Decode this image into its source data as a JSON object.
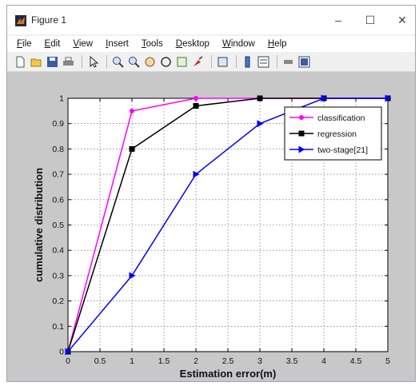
{
  "window": {
    "title": "Figure 1"
  },
  "menu": {
    "items": [
      {
        "acc": "F",
        "rest": "ile"
      },
      {
        "acc": "E",
        "rest": "dit"
      },
      {
        "acc": "V",
        "rest": "iew"
      },
      {
        "acc": "I",
        "rest": "nsert"
      },
      {
        "acc": "T",
        "rest": "ools"
      },
      {
        "acc": "D",
        "rest": "esktop"
      },
      {
        "acc": "W",
        "rest": "indow"
      },
      {
        "acc": "H",
        "rest": "elp"
      }
    ]
  },
  "toolbar": {
    "icons": [
      "new-figure-icon",
      "open-file-icon",
      "save-icon",
      "print-icon",
      "edit-plot-icon",
      "zoom-in-icon",
      "zoom-out-icon",
      "pan-icon",
      "rotate-3d-icon",
      "data-cursor-icon",
      "brush-icon",
      "link-plot-icon",
      "colorbar-icon",
      "legend-icon",
      "hide-plot-tools-icon",
      "show-plot-tools-icon"
    ]
  },
  "chart_data": {
    "type": "line",
    "title": "",
    "xlabel": "Estimation error(m)",
    "ylabel": "cumulative distribution",
    "xlim": [
      0,
      5
    ],
    "ylim": [
      0,
      1
    ],
    "xticks": [
      0,
      0.5,
      1,
      1.5,
      2,
      2.5,
      3,
      3.5,
      4,
      4.5,
      5
    ],
    "xtick_labels": [
      "0",
      "0.5",
      "1",
      "1.5",
      "2",
      "2.5",
      "3",
      "3.5",
      "4",
      "4.5",
      "5"
    ],
    "yticks": [
      0,
      0.1,
      0.2,
      0.3,
      0.4,
      0.5,
      0.6,
      0.7,
      0.8,
      0.9,
      1
    ],
    "ytick_labels": [
      "0",
      "0.1",
      "0.2",
      "0.3",
      "0.4",
      "0.5",
      "0.6",
      "0.7",
      "0.8",
      "0.9",
      "1"
    ],
    "grid": true,
    "legend_position": "top-right",
    "series": [
      {
        "name": "classification",
        "color": "#ff00ff",
        "marker": "dot",
        "x": [
          0,
          1,
          2,
          3,
          4,
          5
        ],
        "y": [
          0,
          0.95,
          1.0,
          1.0,
          1.0,
          1.0
        ]
      },
      {
        "name": "regression",
        "color": "#000000",
        "marker": "square",
        "x": [
          0,
          1,
          2,
          3,
          4,
          5
        ],
        "y": [
          0,
          0.8,
          0.97,
          1.0,
          1.0,
          1.0
        ]
      },
      {
        "name": "two-stage[21]",
        "color": "#0000ff",
        "marker": "triangle-right",
        "x": [
          0,
          1,
          2,
          3,
          4,
          5
        ],
        "y": [
          0,
          0.3,
          0.7,
          0.9,
          1.0,
          1.0
        ]
      }
    ]
  }
}
